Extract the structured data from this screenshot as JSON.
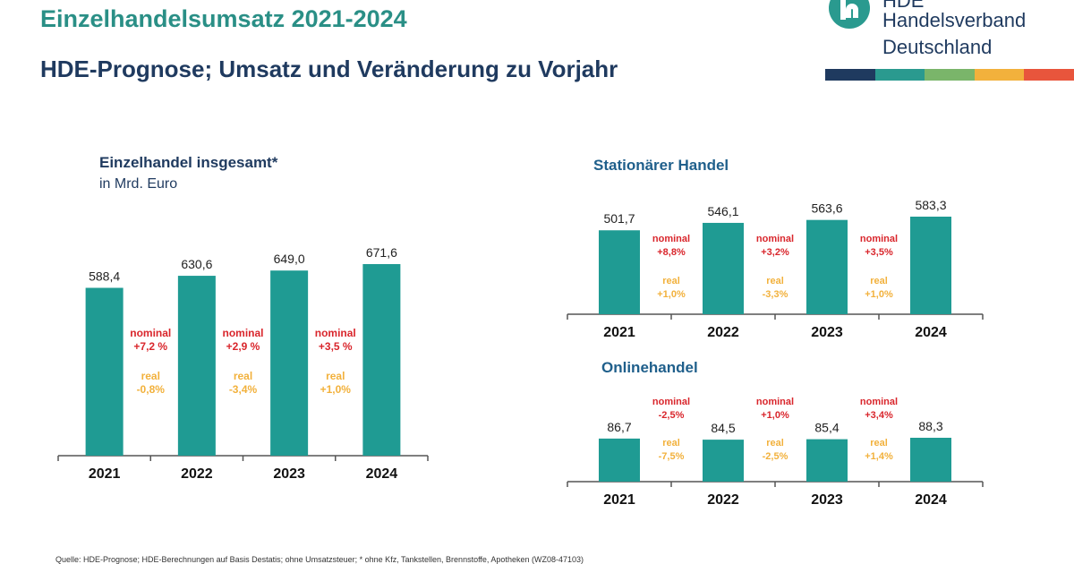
{
  "header": {
    "title": "Einzelhandelsumsatz 2021-2024",
    "subtitle": "HDE-Prognose; Umsatz und Veränderung zu Vorjahr"
  },
  "logo": {
    "line1": "HDE",
    "line2": "Handelsverband",
    "line3": "Deutschland",
    "stripe_colors": [
      "#1f3a5f",
      "#2a9a8f",
      "#7ab56a",
      "#f2b13c",
      "#e8553c"
    ]
  },
  "colors": {
    "bar": "#1f9b93",
    "nominal": "#d9262c",
    "real": "#f2b13c",
    "axis": "#555555"
  },
  "chart_data": [
    {
      "type": "bar",
      "title": "Einzelhandel insgesamt*",
      "subtitle": "in Mrd. Euro",
      "categories": [
        "2021",
        "2022",
        "2023",
        "2024"
      ],
      "values": [
        588.4,
        630.6,
        649.0,
        671.6
      ],
      "value_labels": [
        "588,4",
        "630,6",
        "649,0",
        "671,6"
      ],
      "changes": [
        {
          "nominal_label": "nominal",
          "nominal": "+7,2 %",
          "real_label": "real",
          "real": "-0,8%"
        },
        {
          "nominal_label": "nominal",
          "nominal": "+2,9 %",
          "real_label": "real",
          "real": "-3,4%"
        },
        {
          "nominal_label": "nominal",
          "nominal": "+3,5 %",
          "real_label": "real",
          "real": "+1,0%"
        }
      ]
    },
    {
      "type": "bar",
      "title": "Stationärer Handel",
      "categories": [
        "2021",
        "2022",
        "2023",
        "2024"
      ],
      "values": [
        501.7,
        546.1,
        563.6,
        583.3
      ],
      "value_labels": [
        "501,7",
        "546,1",
        "563,6",
        "583,3"
      ],
      "changes": [
        {
          "nominal_label": "nominal",
          "nominal": "+8,8%",
          "real_label": "real",
          "real": "+1,0%"
        },
        {
          "nominal_label": "nominal",
          "nominal": "+3,2%",
          "real_label": "real",
          "real": "-3,3%"
        },
        {
          "nominal_label": "nominal",
          "nominal": "+3,5%",
          "real_label": "real",
          "real": "+1,0%"
        }
      ]
    },
    {
      "type": "bar",
      "title": "Onlinehandel",
      "categories": [
        "2021",
        "2022",
        "2023",
        "2024"
      ],
      "values": [
        86.7,
        84.5,
        85.4,
        88.3
      ],
      "value_labels": [
        "86,7",
        "84,5",
        "85,4",
        "88,3"
      ],
      "changes": [
        {
          "nominal_label": "nominal",
          "nominal": "-2,5%",
          "real_label": "real",
          "real": "-7,5%"
        },
        {
          "nominal_label": "nominal",
          "nominal": "+1,0%",
          "real_label": "real",
          "real": "-2,5%"
        },
        {
          "nominal_label": "nominal",
          "nominal": "+3,4%",
          "real_label": "real",
          "real": "+1,4%"
        }
      ]
    }
  ],
  "footer": {
    "source": "Quelle: HDE-Prognose; HDE-Berechnungen auf Basis Destatis; ohne Umsatzsteuer; * ohne Kfz, Tankstellen, Brennstoffe, Apotheken (WZ08-47103)"
  }
}
